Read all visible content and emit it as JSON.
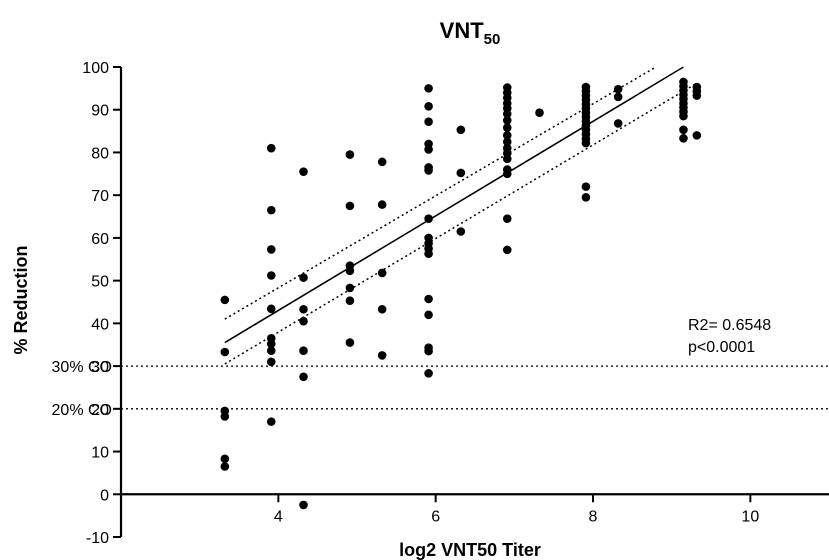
{
  "chart_data": {
    "type": "scatter",
    "title": "VNT",
    "title_subscript": "50",
    "xlabel": "log2 VNT50 Titer",
    "ylabel": "% Reduction",
    "xlim": [
      2,
      11
    ],
    "ylim": [
      -10,
      100
    ],
    "x_ticks": [
      4,
      6,
      8,
      10
    ],
    "y_ticks": [
      -10,
      0,
      10,
      20,
      30,
      40,
      50,
      60,
      70,
      80,
      90,
      100
    ],
    "grid": false,
    "reference_lines": [
      {
        "label": "30% CO",
        "y": 30
      },
      {
        "label": "20% CO",
        "y": 20
      }
    ],
    "annotations": [
      "R2= 0.6548",
      "p<0.0001"
    ],
    "fit": {
      "line": [
        [
          3.32,
          35.5
        ],
        [
          9.15,
          100
        ]
      ],
      "upper_band": [
        [
          3.32,
          41
        ],
        [
          8.8,
          100
        ]
      ],
      "lower_band": [
        [
          3.32,
          30.5
        ],
        [
          9.3,
          96
        ]
      ]
    },
    "points": [
      [
        3.32,
        45.5
      ],
      [
        3.32,
        33.3
      ],
      [
        3.32,
        19.5
      ],
      [
        3.32,
        18.2
      ],
      [
        3.32,
        8.3
      ],
      [
        3.32,
        6.5
      ],
      [
        3.91,
        81
      ],
      [
        3.91,
        66.5
      ],
      [
        3.91,
        57.3
      ],
      [
        3.91,
        51.2
      ],
      [
        3.91,
        43.4
      ],
      [
        3.91,
        36.5
      ],
      [
        3.91,
        35.2
      ],
      [
        3.91,
        33.6
      ],
      [
        3.91,
        31
      ],
      [
        3.91,
        17
      ],
      [
        4.32,
        75.5
      ],
      [
        4.32,
        50.7
      ],
      [
        4.32,
        43.3
      ],
      [
        4.32,
        40.5
      ],
      [
        4.32,
        33.6
      ],
      [
        4.32,
        27.5
      ],
      [
        4.32,
        -2.5
      ],
      [
        4.91,
        79.5
      ],
      [
        4.91,
        67.5
      ],
      [
        4.91,
        53.5
      ],
      [
        4.91,
        52.3
      ],
      [
        4.91,
        48.3
      ],
      [
        4.91,
        45.3
      ],
      [
        4.91,
        35.5
      ],
      [
        5.32,
        77.8
      ],
      [
        5.32,
        67.8
      ],
      [
        5.32,
        51.8
      ],
      [
        5.32,
        43.3
      ],
      [
        5.32,
        32.5
      ],
      [
        5.91,
        95
      ],
      [
        5.91,
        90.8
      ],
      [
        5.91,
        87.2
      ],
      [
        5.91,
        82
      ],
      [
        5.91,
        80.7
      ],
      [
        5.91,
        76.5
      ],
      [
        5.91,
        75.8
      ],
      [
        5.91,
        64.5
      ],
      [
        5.91,
        60
      ],
      [
        5.91,
        58.7
      ],
      [
        5.91,
        57.5
      ],
      [
        5.91,
        56.3
      ],
      [
        5.91,
        45.7
      ],
      [
        5.91,
        42
      ],
      [
        5.91,
        34.3
      ],
      [
        5.91,
        33.5
      ],
      [
        5.91,
        28.3
      ],
      [
        6.32,
        85.3
      ],
      [
        6.32,
        75.2
      ],
      [
        6.32,
        61.5
      ],
      [
        6.91,
        95.2
      ],
      [
        6.91,
        94
      ],
      [
        6.91,
        92.8
      ],
      [
        6.91,
        91.5
      ],
      [
        6.91,
        90.3
      ],
      [
        6.91,
        89
      ],
      [
        6.91,
        87.5
      ],
      [
        6.91,
        85.8
      ],
      [
        6.91,
        84
      ],
      [
        6.91,
        82.5
      ],
      [
        6.91,
        81
      ],
      [
        6.91,
        79.8
      ],
      [
        6.91,
        78.5
      ],
      [
        6.91,
        76
      ],
      [
        6.91,
        75
      ],
      [
        6.91,
        64.5
      ],
      [
        6.91,
        57.2
      ],
      [
        7.32,
        89.3
      ],
      [
        7.91,
        95.3
      ],
      [
        7.91,
        94.3
      ],
      [
        7.91,
        93.3
      ],
      [
        7.91,
        92.3
      ],
      [
        7.91,
        91.3
      ],
      [
        7.91,
        90.3
      ],
      [
        7.91,
        89.3
      ],
      [
        7.91,
        88.3
      ],
      [
        7.91,
        87.3
      ],
      [
        7.91,
        86.3
      ],
      [
        7.91,
        85.3
      ],
      [
        7.91,
        84.3
      ],
      [
        7.91,
        83.2
      ],
      [
        7.91,
        82.2
      ],
      [
        7.91,
        72
      ],
      [
        7.91,
        69.5
      ],
      [
        8.32,
        94.8
      ],
      [
        8.32,
        93
      ],
      [
        8.32,
        86.8
      ],
      [
        9.15,
        96.5
      ],
      [
        9.15,
        95.5
      ],
      [
        9.15,
        94.5
      ],
      [
        9.15,
        93.5
      ],
      [
        9.15,
        92.5
      ],
      [
        9.15,
        91.5
      ],
      [
        9.15,
        90.5
      ],
      [
        9.15,
        89.5
      ],
      [
        9.15,
        88.5
      ],
      [
        9.15,
        85.3
      ],
      [
        9.15,
        83.3
      ],
      [
        9.32,
        95.3
      ],
      [
        9.32,
        94.3
      ],
      [
        9.32,
        93.3
      ],
      [
        9.32,
        84
      ]
    ]
  }
}
